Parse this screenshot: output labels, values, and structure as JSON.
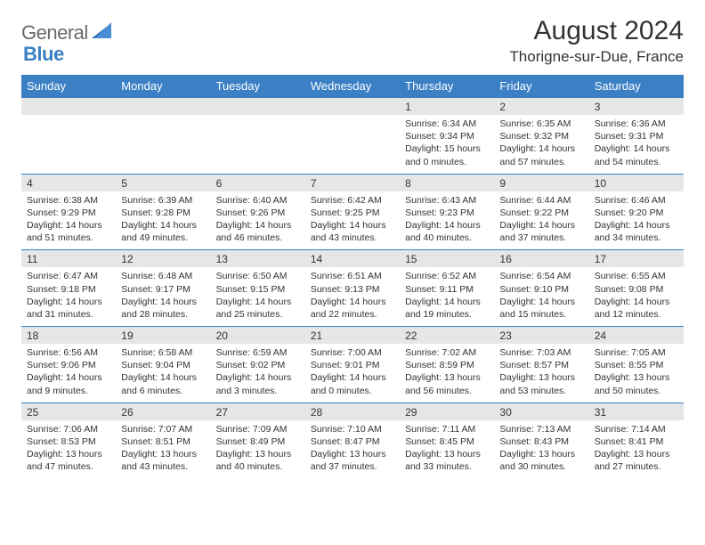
{
  "brand": {
    "part1": "General",
    "part2": "Blue"
  },
  "title": "August 2024",
  "location": "Thorigne-sur-Due, France",
  "colors": {
    "accent": "#3b7fc4",
    "dow_bg": "#3b7fc4",
    "dow_text": "#ffffff",
    "daynum_bg": "#e6e6e6",
    "border": "#3b7fc4",
    "text": "#333333",
    "logo_gray": "#6a6a6a"
  },
  "dow": [
    "Sunday",
    "Monday",
    "Tuesday",
    "Wednesday",
    "Thursday",
    "Friday",
    "Saturday"
  ],
  "weeks": [
    [
      {
        "n": "",
        "sr": "",
        "ss": "",
        "dl": ""
      },
      {
        "n": "",
        "sr": "",
        "ss": "",
        "dl": ""
      },
      {
        "n": "",
        "sr": "",
        "ss": "",
        "dl": ""
      },
      {
        "n": "",
        "sr": "",
        "ss": "",
        "dl": ""
      },
      {
        "n": "1",
        "sr": "Sunrise: 6:34 AM",
        "ss": "Sunset: 9:34 PM",
        "dl": "Daylight: 15 hours and 0 minutes."
      },
      {
        "n": "2",
        "sr": "Sunrise: 6:35 AM",
        "ss": "Sunset: 9:32 PM",
        "dl": "Daylight: 14 hours and 57 minutes."
      },
      {
        "n": "3",
        "sr": "Sunrise: 6:36 AM",
        "ss": "Sunset: 9:31 PM",
        "dl": "Daylight: 14 hours and 54 minutes."
      }
    ],
    [
      {
        "n": "4",
        "sr": "Sunrise: 6:38 AM",
        "ss": "Sunset: 9:29 PM",
        "dl": "Daylight: 14 hours and 51 minutes."
      },
      {
        "n": "5",
        "sr": "Sunrise: 6:39 AM",
        "ss": "Sunset: 9:28 PM",
        "dl": "Daylight: 14 hours and 49 minutes."
      },
      {
        "n": "6",
        "sr": "Sunrise: 6:40 AM",
        "ss": "Sunset: 9:26 PM",
        "dl": "Daylight: 14 hours and 46 minutes."
      },
      {
        "n": "7",
        "sr": "Sunrise: 6:42 AM",
        "ss": "Sunset: 9:25 PM",
        "dl": "Daylight: 14 hours and 43 minutes."
      },
      {
        "n": "8",
        "sr": "Sunrise: 6:43 AM",
        "ss": "Sunset: 9:23 PM",
        "dl": "Daylight: 14 hours and 40 minutes."
      },
      {
        "n": "9",
        "sr": "Sunrise: 6:44 AM",
        "ss": "Sunset: 9:22 PM",
        "dl": "Daylight: 14 hours and 37 minutes."
      },
      {
        "n": "10",
        "sr": "Sunrise: 6:46 AM",
        "ss": "Sunset: 9:20 PM",
        "dl": "Daylight: 14 hours and 34 minutes."
      }
    ],
    [
      {
        "n": "11",
        "sr": "Sunrise: 6:47 AM",
        "ss": "Sunset: 9:18 PM",
        "dl": "Daylight: 14 hours and 31 minutes."
      },
      {
        "n": "12",
        "sr": "Sunrise: 6:48 AM",
        "ss": "Sunset: 9:17 PM",
        "dl": "Daylight: 14 hours and 28 minutes."
      },
      {
        "n": "13",
        "sr": "Sunrise: 6:50 AM",
        "ss": "Sunset: 9:15 PM",
        "dl": "Daylight: 14 hours and 25 minutes."
      },
      {
        "n": "14",
        "sr": "Sunrise: 6:51 AM",
        "ss": "Sunset: 9:13 PM",
        "dl": "Daylight: 14 hours and 22 minutes."
      },
      {
        "n": "15",
        "sr": "Sunrise: 6:52 AM",
        "ss": "Sunset: 9:11 PM",
        "dl": "Daylight: 14 hours and 19 minutes."
      },
      {
        "n": "16",
        "sr": "Sunrise: 6:54 AM",
        "ss": "Sunset: 9:10 PM",
        "dl": "Daylight: 14 hours and 15 minutes."
      },
      {
        "n": "17",
        "sr": "Sunrise: 6:55 AM",
        "ss": "Sunset: 9:08 PM",
        "dl": "Daylight: 14 hours and 12 minutes."
      }
    ],
    [
      {
        "n": "18",
        "sr": "Sunrise: 6:56 AM",
        "ss": "Sunset: 9:06 PM",
        "dl": "Daylight: 14 hours and 9 minutes."
      },
      {
        "n": "19",
        "sr": "Sunrise: 6:58 AM",
        "ss": "Sunset: 9:04 PM",
        "dl": "Daylight: 14 hours and 6 minutes."
      },
      {
        "n": "20",
        "sr": "Sunrise: 6:59 AM",
        "ss": "Sunset: 9:02 PM",
        "dl": "Daylight: 14 hours and 3 minutes."
      },
      {
        "n": "21",
        "sr": "Sunrise: 7:00 AM",
        "ss": "Sunset: 9:01 PM",
        "dl": "Daylight: 14 hours and 0 minutes."
      },
      {
        "n": "22",
        "sr": "Sunrise: 7:02 AM",
        "ss": "Sunset: 8:59 PM",
        "dl": "Daylight: 13 hours and 56 minutes."
      },
      {
        "n": "23",
        "sr": "Sunrise: 7:03 AM",
        "ss": "Sunset: 8:57 PM",
        "dl": "Daylight: 13 hours and 53 minutes."
      },
      {
        "n": "24",
        "sr": "Sunrise: 7:05 AM",
        "ss": "Sunset: 8:55 PM",
        "dl": "Daylight: 13 hours and 50 minutes."
      }
    ],
    [
      {
        "n": "25",
        "sr": "Sunrise: 7:06 AM",
        "ss": "Sunset: 8:53 PM",
        "dl": "Daylight: 13 hours and 47 minutes."
      },
      {
        "n": "26",
        "sr": "Sunrise: 7:07 AM",
        "ss": "Sunset: 8:51 PM",
        "dl": "Daylight: 13 hours and 43 minutes."
      },
      {
        "n": "27",
        "sr": "Sunrise: 7:09 AM",
        "ss": "Sunset: 8:49 PM",
        "dl": "Daylight: 13 hours and 40 minutes."
      },
      {
        "n": "28",
        "sr": "Sunrise: 7:10 AM",
        "ss": "Sunset: 8:47 PM",
        "dl": "Daylight: 13 hours and 37 minutes."
      },
      {
        "n": "29",
        "sr": "Sunrise: 7:11 AM",
        "ss": "Sunset: 8:45 PM",
        "dl": "Daylight: 13 hours and 33 minutes."
      },
      {
        "n": "30",
        "sr": "Sunrise: 7:13 AM",
        "ss": "Sunset: 8:43 PM",
        "dl": "Daylight: 13 hours and 30 minutes."
      },
      {
        "n": "31",
        "sr": "Sunrise: 7:14 AM",
        "ss": "Sunset: 8:41 PM",
        "dl": "Daylight: 13 hours and 27 minutes."
      }
    ]
  ]
}
